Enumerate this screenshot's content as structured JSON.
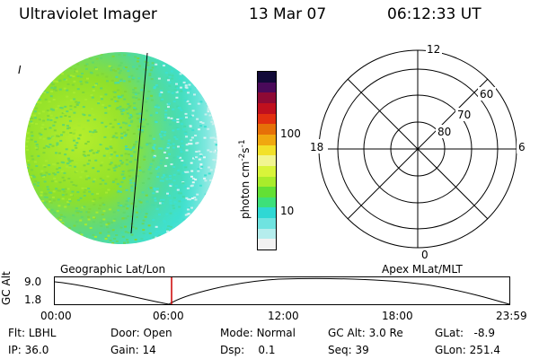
{
  "header": {
    "title": "Ultraviolet Imager",
    "date": "13 Mar 07",
    "time": "06:12:33 UT"
  },
  "image_panel": {
    "corner_mark": "I",
    "colors": {
      "green": "#8fe02a",
      "green_yellow": "#b6ee2c",
      "cyan": "#3ee0d0",
      "light_cyan": "#d2f2f2",
      "scan_line": "#000000"
    }
  },
  "colorbar": {
    "label": "photon cm",
    "exp1": "-2",
    "mid": "s",
    "exp2": "-1",
    "ticks": [
      "100",
      "10"
    ],
    "colors": [
      "#f2f2f2",
      "#b5eded",
      "#6fe3e0",
      "#2fd8d4",
      "#3de07a",
      "#63e035",
      "#a9ec2b",
      "#d9f43a",
      "#f1f590",
      "#f2e12a",
      "#f0a810",
      "#e67008",
      "#e23010",
      "#c0101e",
      "#8e0a35",
      "#4a0a5a",
      "#120a38"
    ]
  },
  "polar_plot": {
    "mlt_labels": {
      "top": "12",
      "left": "18",
      "right": "6",
      "bottom": "0"
    },
    "lat_labels": [
      "60",
      "70",
      "80"
    ]
  },
  "timeline": {
    "ylabel": "GC Alt",
    "yticks": [
      "9.0",
      "1.8"
    ],
    "left_title": "Geographic Lat/Lon",
    "right_title": "Apex MLat/MLT",
    "xticks": [
      "00:00",
      "06:00",
      "12:00",
      "18:00",
      "23:59"
    ],
    "current_time_marker_color": "#cc0000"
  },
  "info": {
    "row1": [
      {
        "label": "Flt:",
        "value": "LBHL"
      },
      {
        "label": "Door:",
        "value": "Open"
      },
      {
        "label": "Mode:",
        "value": "Normal"
      },
      {
        "label": "GC Alt:",
        "value": "3.0 Re"
      },
      {
        "label": "GLat:",
        "value": "-8.9"
      }
    ],
    "row2": [
      {
        "label": "IP:",
        "value": "36.0"
      },
      {
        "label": "Gain:",
        "value": "14"
      },
      {
        "label": "Dsp:",
        "value": "0.1"
      },
      {
        "label": "Seq:",
        "value": "39"
      },
      {
        "label": "GLon:",
        "value": "251.4"
      }
    ]
  }
}
